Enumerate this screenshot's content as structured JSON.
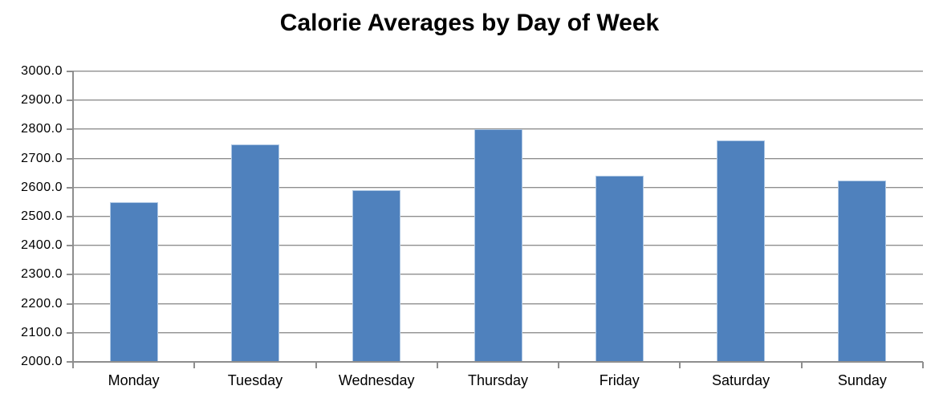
{
  "chart_data": {
    "type": "bar",
    "title": "Calorie Averages by Day of Week",
    "categories": [
      "Monday",
      "Tuesday",
      "Wednesday",
      "Thursday",
      "Friday",
      "Saturday",
      "Sunday"
    ],
    "values": [
      2550,
      2750,
      2590,
      2800,
      2642,
      2763,
      2624
    ],
    "xlabel": "",
    "ylabel": "",
    "ylim": [
      2000,
      3000
    ],
    "ytick_step": 100,
    "ytick_labels": [
      "3000.0",
      "2900.0",
      "2800.0",
      "2700.0",
      "2600.0",
      "2500.0",
      "2400.0",
      "2300.0",
      "2200.0",
      "2100.0",
      "2000.0"
    ],
    "grid": true,
    "legend": "none",
    "colors": {
      "bar": "#4F81BD",
      "bar_border": "#AFC8E4",
      "gridline": "#8E8E8E",
      "gridline_shadow": "#D6D6D6",
      "axis": "#8E8E8E",
      "text": "#000000",
      "background": "#FFFFFF"
    }
  }
}
